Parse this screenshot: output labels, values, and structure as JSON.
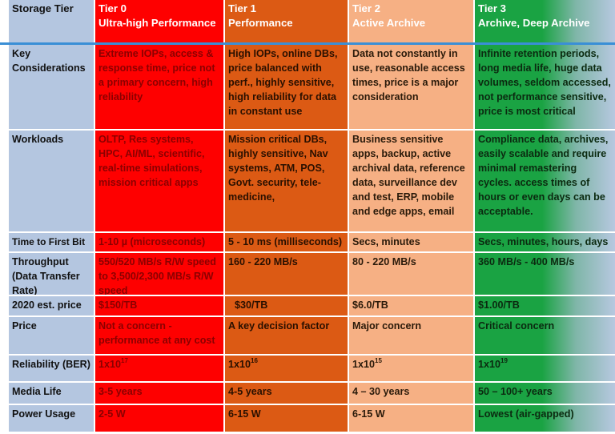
{
  "header": {
    "label": "Storage Tier",
    "tiers": [
      {
        "tier": "Tier 0",
        "name": "Ultra-high Performance",
        "color": "#fe0000"
      },
      {
        "tier": "Tier 1",
        "name": "Performance",
        "color": "#dc5a14"
      },
      {
        "tier": "Tier 2",
        "name": "Active Archive",
        "color": "#f6b084"
      },
      {
        "tier": "Tier 3",
        "name": "Archive, Deep Archive",
        "color": "#1aa343"
      }
    ]
  },
  "rows": [
    {
      "label": "Key Considerations",
      "values": [
        "Extreme IOPs, access & response time, price not a primary concern, high reliability",
        "High IOPs, online DBs, price balanced with perf.,  highly sensitive, high reliability for data in constant use",
        "Data not constantly in use, reasonable access times, price is a major consideration",
        "Infinite retention periods, long media life, huge data volumes, seldom accessed, not performance sensitive, price is most critical"
      ]
    },
    {
      "label": "Workloads",
      "values": [
        "OLTP, Res systems, HPC, AI/ML, scientific, real-time simulations, mission critical apps",
        "Mission critical DBs, highly sensitive, Nav systems, ATM, POS, Govt. security, tele-medicine,",
        "Business sensitive apps, backup, active archival data, reference data, surveillance dev and test, ERP, mobile and edge apps, email",
        "Compliance data, archives, easily scalable and require minimal remastering cycles. access times of hours or even days can be acceptable."
      ]
    },
    {
      "label": "Time to First Bit",
      "values": [
        "1-10 µ (microseconds)",
        "5 - 10 ms (milliseconds)",
        "Secs, minutes",
        "Secs, minutes, hours, days"
      ]
    },
    {
      "label": "Throughput (Data Transfer Rate)",
      "values": [
        "550/520 MB/s  R/W speed to 3,500/2,300 MB/s  R/W speed",
        "160 - 220 MB/s",
        "80 - 220 MB/s",
        "360 MB/s - 400 MB/s"
      ]
    },
    {
      "label": "2020 est. price",
      "values": [
        "$150/TB",
        "$30/TB",
        "$6.0/TB",
        "$1.00/TB"
      ]
    },
    {
      "label": "Price",
      "values": [
        "Not a concern - performance at any cost",
        "A key decision factor",
        "Major concern",
        "Critical concern"
      ]
    },
    {
      "label": "Reliability (BER)",
      "values": [
        {
          "base": "1x10",
          "exp": "17"
        },
        {
          "base": "1x10",
          "exp": "16"
        },
        {
          "base": "1x10",
          "exp": "15"
        },
        {
          "base": "1x10",
          "exp": "19"
        }
      ]
    },
    {
      "label": "Media Life",
      "values": [
        "3-5 years",
        "4-5 years",
        "4 – 30 years",
        "50 – 100+ years"
      ]
    },
    {
      "label": "Power Usage",
      "values": [
        "2-5 W",
        "6-15 W",
        "6-15 W",
        "Lowest (air-gapped)"
      ]
    }
  ]
}
